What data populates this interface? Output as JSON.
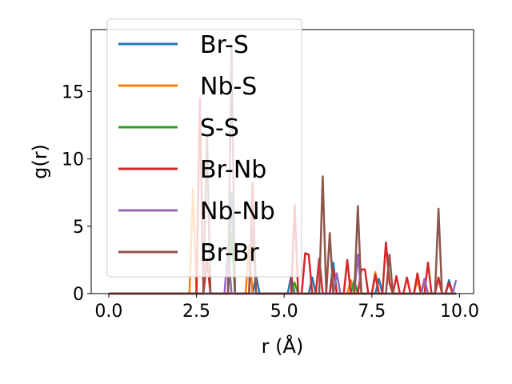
{
  "chart_data": {
    "type": "line",
    "xlabel": "r (Å)",
    "ylabel": "g(r)",
    "xlim": [
      -0.5,
      10.4
    ],
    "ylim": [
      0,
      19.6
    ],
    "xticks": [
      0.0,
      2.5,
      5.0,
      7.5,
      10.0
    ],
    "xtick_labels": [
      "0.0",
      "2.5",
      "5.0",
      "7.5",
      "10.0"
    ],
    "yticks": [
      0,
      5,
      10,
      15
    ],
    "ytick_labels": [
      "0",
      "5",
      "10",
      "15"
    ],
    "grid": false,
    "legend_position": "upper-left",
    "series": [
      {
        "name": "Br-S",
        "color": "#1f77b4",
        "points": [
          [
            0,
            0
          ],
          [
            3.4,
            0
          ],
          [
            3.5,
            7.5
          ],
          [
            3.6,
            0
          ],
          [
            4.1,
            0
          ],
          [
            4.2,
            1.3
          ],
          [
            4.3,
            0
          ],
          [
            5.1,
            0
          ],
          [
            5.2,
            1.3
          ],
          [
            5.3,
            0
          ],
          [
            5.7,
            0
          ],
          [
            5.8,
            1.2
          ],
          [
            5.9,
            0
          ],
          [
            6.3,
            0
          ],
          [
            6.4,
            2.3
          ],
          [
            6.5,
            0
          ],
          [
            7.6,
            0
          ],
          [
            7.7,
            1.1
          ],
          [
            7.8,
            0
          ],
          [
            8.7,
            0
          ],
          [
            8.8,
            1.2
          ],
          [
            8.9,
            0
          ],
          [
            9.6,
            0
          ],
          [
            9.7,
            1.0
          ],
          [
            9.8,
            0
          ],
          [
            9.9,
            0
          ]
        ]
      },
      {
        "name": "Nb-S",
        "color": "#ff7f0e",
        "points": [
          [
            0,
            0
          ],
          [
            2.3,
            0
          ],
          [
            2.4,
            7.8
          ],
          [
            2.5,
            0
          ],
          [
            3.9,
            0
          ],
          [
            4.0,
            3.6
          ],
          [
            4.1,
            0
          ],
          [
            6.8,
            0
          ],
          [
            6.9,
            1.0
          ],
          [
            7.0,
            0
          ],
          [
            7.5,
            0
          ],
          [
            7.6,
            1.6
          ],
          [
            7.7,
            0
          ],
          [
            8.7,
            0
          ],
          [
            8.8,
            1.0
          ],
          [
            8.9,
            0
          ],
          [
            9.9,
            0
          ]
        ]
      },
      {
        "name": "S-S",
        "color": "#2ca02c",
        "points": [
          [
            0,
            0
          ],
          [
            3.4,
            0
          ],
          [
            3.5,
            4.5
          ],
          [
            3.6,
            0
          ],
          [
            5.2,
            0
          ],
          [
            5.3,
            0.8
          ],
          [
            5.4,
            0
          ],
          [
            6.9,
            0
          ],
          [
            7.0,
            1.0
          ],
          [
            7.1,
            0
          ],
          [
            8.9,
            0
          ],
          [
            9.0,
            0.9
          ],
          [
            9.1,
            0
          ],
          [
            9.9,
            0
          ]
        ]
      },
      {
        "name": "Br-Nb",
        "color": "#d62728",
        "points": [
          [
            0,
            0
          ],
          [
            2.5,
            0
          ],
          [
            2.6,
            14.5
          ],
          [
            2.7,
            0
          ],
          [
            2.8,
            2.5
          ],
          [
            2.9,
            0
          ],
          [
            4.0,
            0
          ],
          [
            4.1,
            8.2
          ],
          [
            4.2,
            0
          ],
          [
            5.2,
            0
          ],
          [
            5.3,
            6.6
          ],
          [
            5.4,
            0
          ],
          [
            5.5,
            0
          ],
          [
            5.6,
            3.0
          ],
          [
            5.7,
            2.9
          ],
          [
            5.8,
            0
          ],
          [
            5.9,
            0
          ],
          [
            6.0,
            2.6
          ],
          [
            6.1,
            0
          ],
          [
            6.3,
            0
          ],
          [
            6.4,
            1.8
          ],
          [
            6.5,
            0
          ],
          [
            6.7,
            0
          ],
          [
            6.8,
            2.5
          ],
          [
            6.9,
            0
          ],
          [
            7.1,
            0
          ],
          [
            7.2,
            1.8
          ],
          [
            7.3,
            1.8
          ],
          [
            7.4,
            0
          ],
          [
            7.5,
            0
          ],
          [
            7.6,
            1.4
          ],
          [
            7.7,
            0
          ],
          [
            7.8,
            0
          ],
          [
            7.9,
            3.8
          ],
          [
            8.0,
            0.8
          ],
          [
            8.1,
            0
          ],
          [
            8.2,
            1.3
          ],
          [
            8.3,
            0
          ],
          [
            8.4,
            0
          ],
          [
            8.5,
            1.2
          ],
          [
            8.6,
            0
          ],
          [
            8.7,
            0
          ],
          [
            8.8,
            1.5
          ],
          [
            8.9,
            0
          ],
          [
            9.0,
            0
          ],
          [
            9.1,
            2.3
          ],
          [
            9.2,
            0
          ],
          [
            9.3,
            0
          ],
          [
            9.4,
            1.2
          ],
          [
            9.5,
            0
          ],
          [
            9.6,
            0
          ],
          [
            9.7,
            0.8
          ],
          [
            9.8,
            0
          ],
          [
            9.9,
            0
          ]
        ]
      },
      {
        "name": "Nb-Nb",
        "color": "#9467bd",
        "points": [
          [
            0,
            0
          ],
          [
            3.3,
            0
          ],
          [
            3.4,
            3.4
          ],
          [
            3.5,
            0
          ],
          [
            6.4,
            0
          ],
          [
            6.5,
            1.5
          ],
          [
            6.6,
            0
          ],
          [
            7.0,
            0
          ],
          [
            7.1,
            2.9
          ],
          [
            7.2,
            0
          ],
          [
            8.9,
            0
          ],
          [
            9.0,
            1.1
          ],
          [
            9.1,
            0
          ],
          [
            9.8,
            0
          ],
          [
            9.9,
            1.0
          ]
        ]
      },
      {
        "name": "Br-Br",
        "color": "#8c564b",
        "points": [
          [
            0,
            0
          ],
          [
            2.7,
            0
          ],
          [
            2.8,
            11.8
          ],
          [
            2.9,
            0
          ],
          [
            3.4,
            0
          ],
          [
            3.5,
            18.3
          ],
          [
            3.6,
            0
          ],
          [
            4.0,
            0
          ],
          [
            4.1,
            4.9
          ],
          [
            4.2,
            0
          ],
          [
            6.0,
            0
          ],
          [
            6.1,
            8.7
          ],
          [
            6.2,
            0
          ],
          [
            6.3,
            4.5
          ],
          [
            6.4,
            0
          ],
          [
            7.0,
            0
          ],
          [
            7.1,
            6.5
          ],
          [
            7.2,
            0
          ],
          [
            7.9,
            0
          ],
          [
            8.0,
            2.9
          ],
          [
            8.1,
            0
          ],
          [
            9.3,
            0
          ],
          [
            9.4,
            6.3
          ],
          [
            9.5,
            0
          ],
          [
            9.9,
            0
          ]
        ]
      }
    ]
  }
}
